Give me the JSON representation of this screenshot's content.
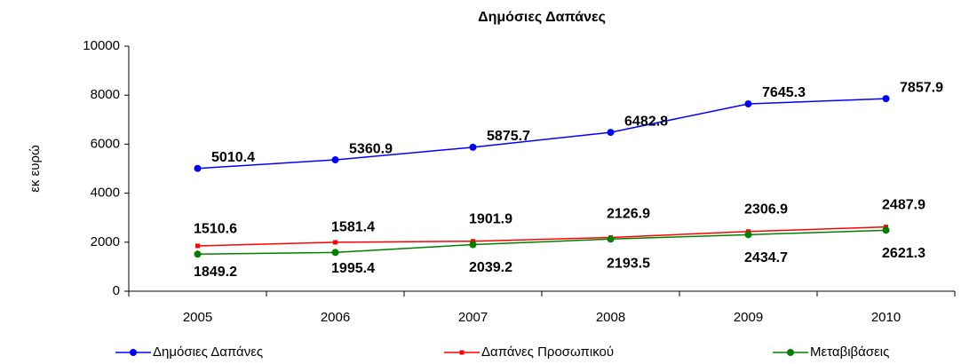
{
  "chart_data": {
    "type": "line",
    "title": "Δημόσιες Δαπάνες",
    "y_label": "εκ ευρώ",
    "categories": [
      "2005",
      "2006",
      "2007",
      "2008",
      "2009",
      "2010"
    ],
    "series": [
      {
        "name": "Δημόσιες Δαπάνες",
        "color": "#0000ff",
        "values": [
          5010.4,
          5360.9,
          5875.7,
          6482.8,
          7645.3,
          7857.9
        ]
      },
      {
        "name": "Δαπάνες Προσωπικού",
        "color": "#ff0000",
        "values": [
          1849.2,
          1995.4,
          2039.2,
          2193.5,
          2434.7,
          2621.3
        ]
      },
      {
        "name": "Μεταβιβάσεις",
        "color": "#008000",
        "values": [
          1510.6,
          1581.4,
          1901.9,
          2126.9,
          2306.9,
          2487.9
        ]
      }
    ],
    "ylim": [
      0,
      10000
    ],
    "yticks": [
      0,
      2000,
      4000,
      6000,
      8000,
      10000
    ],
    "grid": false,
    "legend": "bottom"
  }
}
